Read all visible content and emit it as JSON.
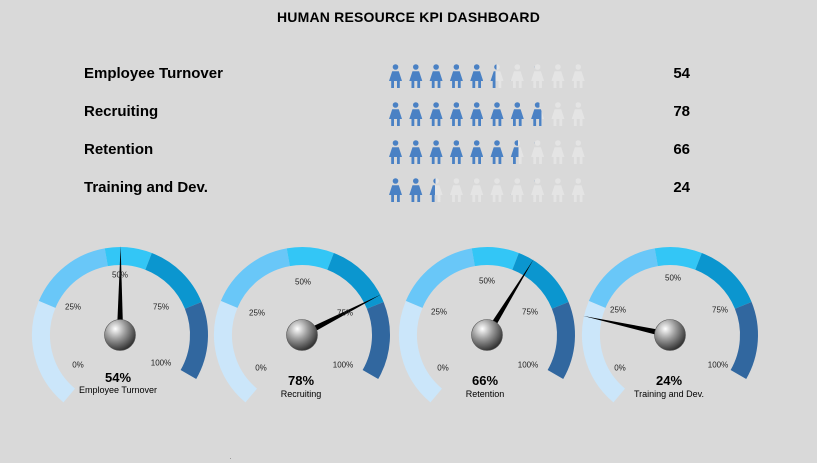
{
  "dashboard": {
    "title": "HUMAN RESOURCE KPI DASHBOARD"
  },
  "kpis": [
    {
      "label": "Employee Turnover",
      "value": 54,
      "value_text": "54"
    },
    {
      "label": "Recruiting",
      "value": 78,
      "value_text": "78"
    },
    {
      "label": "Retention",
      "value": 66,
      "value_text": "66"
    },
    {
      "label": "Training and Dev.",
      "value": 24,
      "value_text": "24"
    }
  ],
  "icons": {
    "person": "person-icon",
    "count_per_row": 10
  },
  "gauges": {
    "ticks": [
      "0%",
      "25%",
      "50%",
      "75%",
      "100%"
    ]
  },
  "colors": {
    "background": "#d9d9d9",
    "person_filled": "#4a81c4",
    "person_empty": "#e4e4e4",
    "band_1": "#cbe6fa",
    "band_2": "#69c7f8",
    "band_3": "#33c6f6",
    "band_4": "#0b96cf",
    "band_5": "#31679f",
    "needle": "#000000"
  },
  "chart_data": [
    {
      "type": "gauge",
      "title": "Employee Turnover",
      "value": 54,
      "value_label": "54%",
      "range": [
        0,
        100
      ],
      "tick_labels": [
        "0%",
        "25%",
        "50%",
        "75%",
        "100%"
      ]
    },
    {
      "type": "gauge",
      "title": "Recruiting",
      "value": 78,
      "value_label": "78%",
      "range": [
        0,
        100
      ],
      "tick_labels": [
        "0%",
        "25%",
        "50%",
        "75%",
        "100%"
      ]
    },
    {
      "type": "gauge",
      "title": "Retention",
      "value": 66,
      "value_label": "66%",
      "range": [
        0,
        100
      ],
      "tick_labels": [
        "0%",
        "25%",
        "50%",
        "75%",
        "100%"
      ]
    },
    {
      "type": "gauge",
      "title": "Training and Dev.",
      "value": 24,
      "value_label": "24%",
      "range": [
        0,
        100
      ],
      "tick_labels": [
        "0%",
        "25%",
        "50%",
        "75%",
        "100%"
      ]
    }
  ]
}
